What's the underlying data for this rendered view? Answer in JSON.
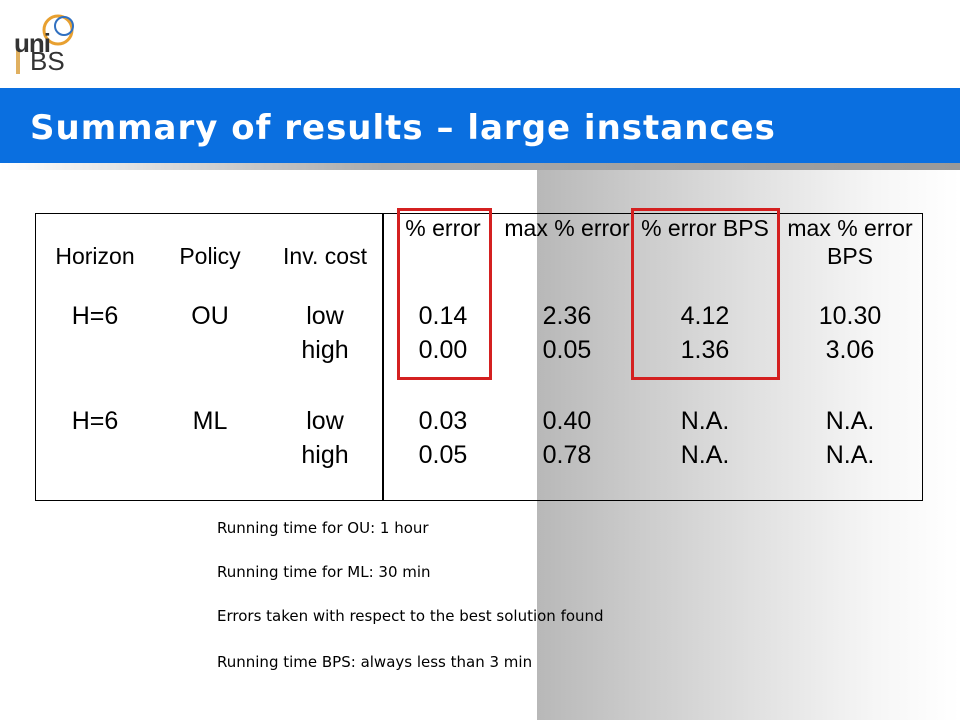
{
  "logo": {
    "top": "uni",
    "bottom": "BS"
  },
  "title": "Summary of results – large instances",
  "table": {
    "row_headers": [
      "Horizon",
      "Policy",
      "Inv. cost"
    ],
    "columns": [
      "% error",
      "max % error",
      "% error BPS",
      "max % error BPS"
    ],
    "groups": [
      {
        "horizon": "H=6",
        "policy": "OU",
        "rows": [
          {
            "inv_cost": "low",
            "values": [
              "0.14",
              "2.36",
              "4.12",
              "10.30"
            ]
          },
          {
            "inv_cost": "high",
            "values": [
              "0.00",
              "0.05",
              "1.36",
              "3.06"
            ]
          }
        ]
      },
      {
        "horizon": "H=6",
        "policy": "ML",
        "rows": [
          {
            "inv_cost": "low",
            "values": [
              "0.03",
              "0.40",
              "N.A.",
              "N.A."
            ]
          },
          {
            "inv_cost": "high",
            "values": [
              "0.05",
              "0.78",
              "N.A.",
              "N.A."
            ]
          }
        ]
      }
    ]
  },
  "notes": [
    "Running time for OU: 1 hour",
    "Running time for ML: 30 min",
    "Errors taken with respect to the best solution found",
    "Running time BPS: always less than 3 min"
  ]
}
